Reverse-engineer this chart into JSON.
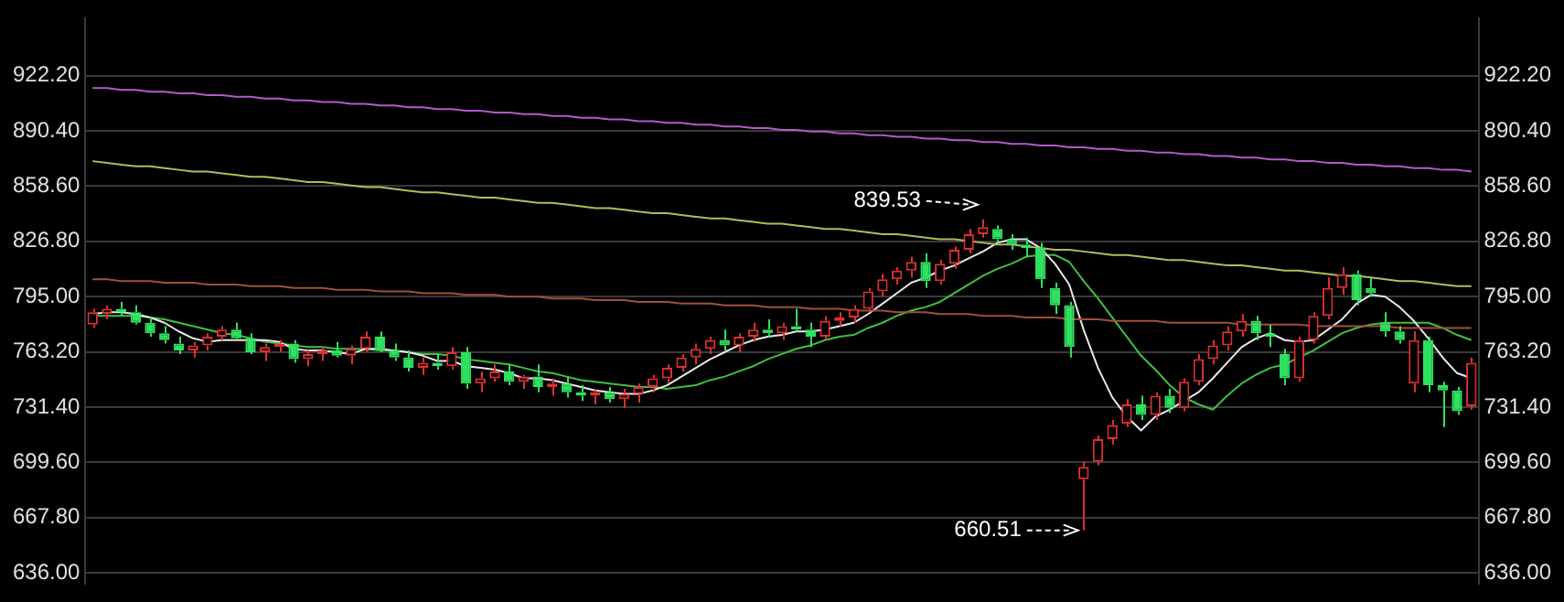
{
  "chart_data": {
    "type": "candlestick",
    "categories": [
      null,
      null,
      null,
      null,
      null,
      null,
      null,
      null,
      null,
      null,
      null,
      null,
      null,
      null,
      null,
      null,
      null,
      null,
      null,
      null,
      null,
      null,
      null,
      null,
      null,
      null,
      null,
      null,
      null,
      null,
      null,
      null,
      null,
      null,
      null,
      null,
      null,
      null,
      null,
      null,
      null,
      null,
      null,
      null,
      null,
      null,
      null,
      null,
      null,
      null,
      null,
      null,
      null,
      null,
      null,
      null,
      null,
      null,
      null,
      null,
      null,
      null,
      null,
      null,
      null,
      null,
      null,
      null,
      null,
      null,
      null,
      null,
      null,
      null,
      null,
      null,
      null,
      null,
      null,
      null,
      null,
      null,
      null,
      null,
      null,
      null,
      null,
      null,
      null,
      null,
      null,
      null,
      null,
      null,
      null,
      null,
      null
    ],
    "ohlc": [
      [
        779,
        788,
        777,
        786
      ],
      [
        785,
        790,
        782,
        788
      ],
      [
        788,
        792,
        784,
        786
      ],
      [
        786,
        790,
        779,
        780
      ],
      [
        780,
        783,
        772,
        774
      ],
      [
        774,
        778,
        768,
        770
      ],
      [
        768,
        772,
        762,
        764
      ],
      [
        764,
        769,
        760,
        767
      ],
      [
        767,
        774,
        764,
        772
      ],
      [
        772,
        778,
        770,
        776
      ],
      [
        776,
        780,
        770,
        771
      ],
      [
        771,
        774,
        762,
        763
      ],
      [
        763,
        768,
        758,
        766
      ],
      [
        766,
        770,
        763,
        768
      ],
      [
        768,
        770,
        757,
        759
      ],
      [
        759,
        764,
        755,
        762
      ],
      [
        762,
        766,
        758,
        764
      ],
      [
        764,
        769,
        760,
        761
      ],
      [
        761,
        767,
        756,
        765
      ],
      [
        765,
        775,
        763,
        772
      ],
      [
        772,
        775,
        763,
        764
      ],
      [
        764,
        768,
        758,
        760
      ],
      [
        760,
        764,
        752,
        754
      ],
      [
        754,
        760,
        750,
        757
      ],
      [
        757,
        762,
        753,
        755
      ],
      [
        755,
        766,
        753,
        763
      ],
      [
        763,
        766,
        742,
        745
      ],
      [
        745,
        752,
        740,
        748
      ],
      [
        748,
        756,
        746,
        752
      ],
      [
        752,
        756,
        744,
        746
      ],
      [
        746,
        750,
        742,
        749
      ],
      [
        749,
        756,
        740,
        743
      ],
      [
        743,
        748,
        738,
        745
      ],
      [
        745,
        749,
        737,
        740
      ],
      [
        740,
        744,
        735,
        738
      ],
      [
        738,
        742,
        733,
        740
      ],
      [
        740,
        743,
        734,
        736
      ],
      [
        736,
        742,
        731,
        739
      ],
      [
        739,
        745,
        734,
        743
      ],
      [
        743,
        750,
        740,
        748
      ],
      [
        748,
        756,
        745,
        754
      ],
      [
        754,
        762,
        752,
        760
      ],
      [
        760,
        768,
        756,
        765
      ],
      [
        765,
        772,
        762,
        770
      ],
      [
        770,
        776,
        764,
        767
      ],
      [
        767,
        774,
        763,
        772
      ],
      [
        772,
        780,
        769,
        776
      ],
      [
        776,
        782,
        772,
        774
      ],
      [
        774,
        780,
        770,
        778
      ],
      [
        778,
        788,
        775,
        776
      ],
      [
        776,
        780,
        766,
        772
      ],
      [
        772,
        784,
        770,
        781
      ],
      [
        781,
        786,
        778,
        783
      ],
      [
        783,
        790,
        780,
        788
      ],
      [
        788,
        800,
        786,
        798
      ],
      [
        798,
        808,
        795,
        805
      ],
      [
        805,
        812,
        802,
        810
      ],
      [
        810,
        818,
        806,
        815
      ],
      [
        815,
        820,
        800,
        804
      ],
      [
        804,
        816,
        802,
        814
      ],
      [
        814,
        824,
        811,
        822
      ],
      [
        822,
        834,
        820,
        831
      ],
      [
        831,
        839.53,
        829,
        835
      ],
      [
        834,
        836,
        826,
        828
      ],
      [
        828,
        831,
        822,
        825
      ],
      [
        825,
        829,
        818,
        823
      ],
      [
        823,
        826,
        800,
        805
      ],
      [
        800,
        803,
        785,
        790
      ],
      [
        790,
        792,
        760,
        766
      ],
      [
        690,
        700,
        660.51,
        697
      ],
      [
        700,
        715,
        698,
        713
      ],
      [
        713,
        724,
        710,
        721
      ],
      [
        722,
        736,
        720,
        733
      ],
      [
        733,
        738,
        724,
        727
      ],
      [
        727,
        740,
        724,
        738
      ],
      [
        738,
        742,
        728,
        731
      ],
      [
        731,
        748,
        729,
        746
      ],
      [
        746,
        762,
        744,
        759
      ],
      [
        759,
        770,
        756,
        767
      ],
      [
        767,
        778,
        764,
        775
      ],
      [
        775,
        785,
        772,
        781
      ],
      [
        781,
        784,
        770,
        774
      ],
      [
        774,
        779,
        766,
        772
      ],
      [
        762,
        765,
        744,
        748
      ],
      [
        748,
        772,
        746,
        770
      ],
      [
        770,
        786,
        768,
        784
      ],
      [
        784,
        806,
        782,
        800
      ],
      [
        800,
        812,
        796,
        808
      ],
      [
        808,
        810,
        790,
        793
      ],
      [
        800,
        806,
        795,
        797
      ],
      [
        780,
        786,
        772,
        775
      ],
      [
        775,
        778,
        768,
        770
      ],
      [
        745,
        775,
        740,
        770
      ],
      [
        770,
        772,
        740,
        744
      ],
      [
        744,
        746,
        720,
        741
      ],
      [
        741,
        743,
        727,
        729
      ],
      [
        732,
        760,
        730,
        757
      ]
    ],
    "series": [
      {
        "type": "line",
        "color": "#b05cc8",
        "values": [
          915,
          915,
          914,
          914,
          913,
          913,
          912,
          912,
          911,
          911,
          910,
          910,
          909,
          909,
          908,
          908,
          907,
          907,
          906,
          906,
          905,
          905,
          904,
          904,
          903,
          903,
          902,
          902,
          901,
          901,
          900,
          900,
          899,
          899,
          898,
          898,
          897,
          897,
          896,
          896,
          895,
          895,
          894,
          894,
          893,
          893,
          892,
          892,
          891,
          891,
          890,
          890,
          889,
          889,
          888,
          888,
          887,
          887,
          886,
          886,
          885,
          885,
          884,
          884,
          883,
          883,
          882,
          882,
          881,
          881,
          880,
          880,
          879,
          879,
          878,
          878,
          877,
          877,
          876,
          876,
          875,
          875,
          874,
          874,
          873,
          873,
          872,
          872,
          871,
          871,
          870,
          870,
          869,
          869,
          868,
          868,
          867
        ]
      },
      {
        "type": "line",
        "color": "#b8b860",
        "values": [
          873,
          872,
          871,
          870,
          870,
          869,
          868,
          867,
          867,
          866,
          865,
          864,
          864,
          863,
          862,
          861,
          861,
          860,
          859,
          858,
          858,
          857,
          856,
          855,
          855,
          854,
          853,
          852,
          852,
          851,
          850,
          849,
          849,
          848,
          847,
          846,
          846,
          845,
          844,
          843,
          843,
          842,
          841,
          840,
          840,
          839,
          838,
          837,
          837,
          836,
          835,
          834,
          834,
          833,
          832,
          831,
          831,
          830,
          829,
          828,
          828,
          827,
          826,
          825,
          825,
          824,
          823,
          822,
          822,
          821,
          820,
          819,
          819,
          818,
          817,
          816,
          816,
          815,
          814,
          813,
          813,
          812,
          811,
          810,
          810,
          809,
          808,
          807,
          807,
          806,
          805,
          804,
          804,
          803,
          802,
          801,
          801
        ]
      },
      {
        "type": "line",
        "color": "#a0503a",
        "values": [
          805,
          805,
          804,
          804,
          804,
          803,
          803,
          803,
          802,
          802,
          802,
          801,
          801,
          801,
          800,
          800,
          800,
          799,
          799,
          799,
          798,
          798,
          798,
          797,
          797,
          797,
          796,
          796,
          796,
          795,
          795,
          795,
          794,
          794,
          794,
          793,
          793,
          793,
          792,
          792,
          792,
          791,
          791,
          791,
          790,
          790,
          790,
          789,
          789,
          789,
          788,
          788,
          788,
          787,
          787,
          787,
          786,
          786,
          786,
          785,
          785,
          785,
          784,
          784,
          784,
          783,
          783,
          783,
          782,
          782,
          782,
          781,
          781,
          781,
          781,
          780,
          780,
          780,
          780,
          780,
          779,
          779,
          779,
          779,
          779,
          778,
          778,
          778,
          778,
          778,
          778,
          777,
          777,
          777,
          777,
          777,
          777
        ]
      },
      {
        "type": "line",
        "color": "#e8e8e8",
        "values": [
          785,
          786,
          786,
          785,
          783,
          780,
          775,
          771,
          769,
          770,
          770,
          770,
          770,
          769,
          765,
          764,
          764,
          763,
          762,
          765,
          765,
          764,
          763,
          761,
          758,
          758,
          755,
          754,
          753,
          751,
          748,
          748,
          747,
          745,
          743,
          741,
          740,
          739,
          739,
          741,
          744,
          749,
          754,
          759,
          763,
          767,
          770,
          772,
          773,
          775,
          775,
          776,
          778,
          780,
          785,
          791,
          797,
          803,
          806,
          810,
          813,
          817,
          821,
          826,
          828,
          828,
          823,
          814,
          802,
          776,
          754,
          737,
          726,
          718,
          726,
          730,
          735,
          740,
          748,
          757,
          766,
          771,
          774,
          770,
          769,
          770,
          776,
          782,
          791,
          796,
          795,
          789,
          781,
          771,
          760,
          751,
          748
        ]
      },
      {
        "type": "line",
        "color": "#40c040",
        "values": [
          784,
          784,
          784,
          784,
          783,
          782,
          780,
          778,
          776,
          774,
          773,
          771,
          769,
          768,
          767,
          766,
          766,
          765,
          765,
          765,
          764,
          764,
          763,
          762,
          762,
          761,
          759,
          758,
          757,
          756,
          754,
          752,
          751,
          749,
          747,
          746,
          745,
          744,
          743,
          743,
          742,
          743,
          744,
          747,
          749,
          752,
          755,
          759,
          762,
          765,
          767,
          770,
          772,
          773,
          777,
          780,
          784,
          787,
          789,
          792,
          797,
          802,
          807,
          811,
          814,
          818,
          819,
          819,
          815,
          804,
          794,
          783,
          772,
          761,
          753,
          744,
          737,
          733,
          730,
          738,
          745,
          750,
          754,
          756,
          760,
          764,
          769,
          774,
          777,
          779,
          780,
          780,
          780,
          780,
          777,
          773,
          770
        ]
      }
    ],
    "ylim": [
      630,
      955
    ],
    "yticks": [
      {
        "value": 922.2,
        "label": "922.20"
      },
      {
        "value": 890.4,
        "label": "890.40"
      },
      {
        "value": 858.6,
        "label": "858.60"
      },
      {
        "value": 826.8,
        "label": "826.80"
      },
      {
        "value": 795,
        "label": "795.00"
      },
      {
        "value": 763.2,
        "label": "763.20"
      },
      {
        "value": 731.4,
        "label": "731.40"
      },
      {
        "value": 699.6,
        "label": "699.60"
      },
      {
        "value": 667.8,
        "label": "667.80"
      },
      {
        "value": 636,
        "label": "636.00"
      }
    ],
    "y2lim": [
      630,
      955
    ],
    "y2ticks": [
      {
        "value": 922.2,
        "label": "922.20"
      },
      {
        "value": 890.4,
        "label": "890.40"
      },
      {
        "value": 858.6,
        "label": "858.60"
      },
      {
        "value": 826.8,
        "label": "826.80"
      },
      {
        "value": 795,
        "label": "795.00"
      },
      {
        "value": 763.2,
        "label": "763.20"
      },
      {
        "value": 731.4,
        "label": "731.40"
      },
      {
        "value": 699.6,
        "label": "699.60"
      },
      {
        "value": 667.8,
        "label": "667.80"
      },
      {
        "value": 636,
        "label": "636.00"
      }
    ],
    "annotations": [
      "839.53",
      "660.51"
    ],
    "grid": "y",
    "legend": false,
    "tick_labels": "y"
  }
}
